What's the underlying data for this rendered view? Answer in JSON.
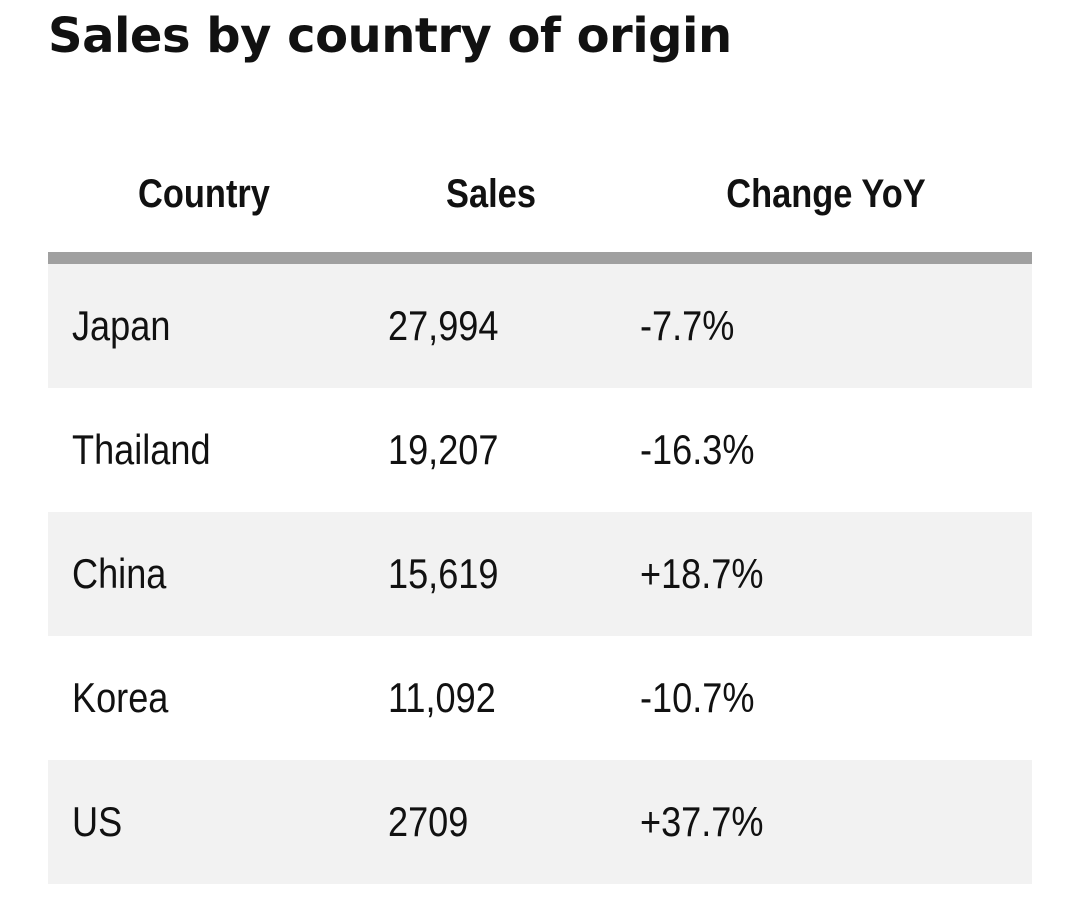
{
  "title": "Sales by country of origin",
  "chart_data": {
    "type": "table",
    "title": "Sales by country of origin",
    "columns": [
      "Country",
      "Sales",
      "Change YoY"
    ],
    "rows": [
      {
        "country": "Japan",
        "sales": "27,994",
        "change": "-7.7%"
      },
      {
        "country": "Thailand",
        "sales": "19,207",
        "change": "-16.3%"
      },
      {
        "country": "China",
        "sales": "15,619",
        "change": "+18.7%"
      },
      {
        "country": "Korea",
        "sales": "11,092",
        "change": "-10.7%"
      },
      {
        "country": "US",
        "sales": "2709",
        "change": "+37.7%"
      }
    ]
  },
  "colors": {
    "header_rule": "#a0a0a0",
    "shaded_row": "#f2f2f2",
    "text": "#111111"
  }
}
